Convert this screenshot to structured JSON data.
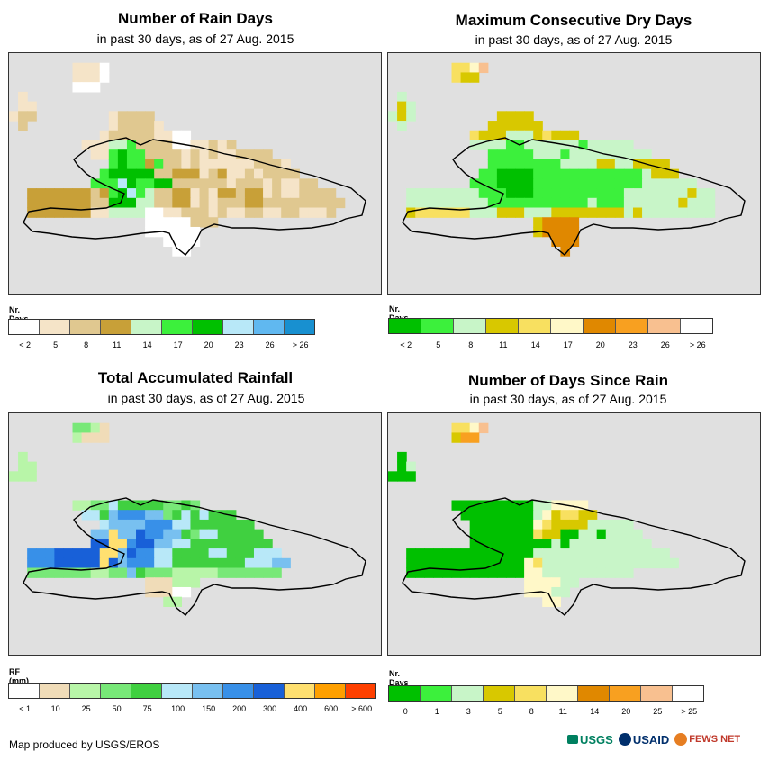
{
  "panels": [
    {
      "id": "rain-days",
      "title": "Number of Rain Days",
      "subtitle": "in past 30 days, as of 27 Aug. 2015",
      "legend_title": "Nr. Days",
      "legend_colors": [
        "#ffffff",
        "#f5e4c8",
        "#e0c890",
        "#c8a038",
        "#c8f5c8",
        "#3cf03c",
        "#00c000",
        "#b8e8f8",
        "#60b8f0",
        "#1890d0"
      ],
      "ticks": [
        "< 2",
        "5",
        "8",
        "11",
        "14",
        "17",
        "20",
        "23",
        "26",
        "> 26"
      ],
      "grid_colors": [
        "#e0e0e0",
        "#ffffff",
        "#f5e4c8",
        "#e0c890",
        "#c8a038",
        "#c8f5c8",
        "#3cf03c",
        "#00c000",
        "#b8e8f8",
        "#60b8f0"
      ],
      "grid": [
        "00000000000000000000000000000000000000000",
        "00000002221000000000000000000000000000000",
        "00000002221000000000000000000000000000000",
        "00000001110000000000000000000000000000000",
        "02000000000000000000000000000000000000000",
        "02200000000000000000000000000000000000000",
        "23300000000233330000000000000000000000000",
        "03000000000233332000000000000000000000000",
        "00000000002333332211000000000000000000000",
        "00000000222556333311223230000000000000000",
        "00000000022676633332323223333000000000000",
        "00000000000676646332322222233320000000000",
        "00000000006777773344423422323333000000000",
        "00000000066687667733333323332322330000000",
        "00444444434678653344232443442322333300000",
        "00444444433777553344232333443333333330000",
        "00444444422555511223332322332233222300000",
        "00000000000000011111333000000000000000000",
        "00000000000000011111100000000000000000000",
        "00000000000000000111100000000000000000000",
        "00000000000000000011000000000000000000000",
        "00000000000000000000000000000000000000000",
        "00000000000000000000000000000000000000000",
        "00000000000000000000000000000000000000000",
        "00000000000000000000000000000000000000000"
      ]
    },
    {
      "id": "dry-days",
      "title": "Maximum Consecutive Dry Days",
      "subtitle": "in past 30 days, as of 27 Aug. 2015",
      "legend_title": "Nr. Days",
      "legend_colors": [
        "#00c000",
        "#3cf03c",
        "#c8f5c8",
        "#d8c800",
        "#f8e060",
        "#fff8c8",
        "#e08800",
        "#f8a020",
        "#f8c090",
        "#ffffff"
      ],
      "ticks": [
        "< 2",
        "5",
        "8",
        "11",
        "14",
        "17",
        "20",
        "23",
        "26",
        "> 26"
      ],
      "grid_colors": [
        "#e0e0e0",
        "#00c000",
        "#3cf03c",
        "#c8f5c8",
        "#d8c800",
        "#f8e060",
        "#fff8c8",
        "#e08800",
        "#f8a020",
        "#f8c090"
      ],
      "grid": [
        "00000000000000000000000000000000000000000",
        "00000005569000000000000000000000000000000",
        "00000005440000000000000000000000000000000",
        "00000000000000000000000000000000000000000",
        "03000000000000000000000000000000000000000",
        "04300000000000000000000000000000000000000",
        "34300000000044440000000000000000000000000",
        "03000000000444444000000000000000000000000",
        "00000000054443334544400000000000000000000",
        "00000000033332233333323333300000000000000",
        "00000000000222223332333333333000000000000",
        "00000000000222222223333443344440000000000",
        "00000000002211112222222222223444000000000",
        "00000000022211112222222222223333330000000",
        "00333333332221112222222222333333343300000",
        "00333333333222222222223222333333433300000",
        "00455555533344433344444444343333333300000",
        "00000000000000004777700000000000000000000",
        "00000000000000004777700000000000000000000",
        "00000000000000000077700000000000000000000",
        "00000000000000000007000000000000000000000",
        "00000000000000000000000000000000000000000",
        "00000000000000000000000000000000000000000",
        "00000000000000000000000000000000000000000",
        "00000000000000000000000000000000000000000"
      ]
    },
    {
      "id": "rainfall",
      "title": "Total Accumulated Rainfall",
      "subtitle": "in past 30 days, as of 27 Aug. 2015",
      "legend_title": "RF (mm)",
      "legend_colors": [
        "#ffffff",
        "#f0dcb8",
        "#b8f5a8",
        "#78e878",
        "#40d040",
        "#b8e8f8",
        "#78c0f0",
        "#3890e8",
        "#1860d8",
        "#ffe070",
        "#ffa000",
        "#ff4000"
      ],
      "ticks": [
        "< 1",
        "10",
        "25",
        "50",
        "75",
        "100",
        "150",
        "200",
        "300",
        "400",
        "600",
        "> 600"
      ],
      "grid_colors": [
        "#e0e0e0",
        "#ffffff",
        "#f0dcb8",
        "#b8f5a8",
        "#78e878",
        "#40d040",
        "#b8e8f8",
        "#78c0f0",
        "#3890e8",
        "#1860d8",
        "#ffe070"
      ],
      "grid": [
        "00000000000000000000000000000000000000000",
        "00000004432000000000000000000000000000000",
        "00000003222000000000000000000000000000000",
        "00000000000000000000000000000000000000000",
        "03000000000000000000000000000000000000000",
        "03300000000000000000000000000000000000000",
        "33300000000000000000000000000000000000000",
        "00000000000000000000000000000000000000000",
        "00000000000000000000000000000000000000000",
        "00000003344655555445400000000000000000000",
        "00000000665788877456565550000000000000000",
        "00000000006777788866555555500000000000000",
        "00000000077a7798877546655555000000000000000",
        "00000000099aa89977665555555550000000000000",
        "0088899999aa798866555566555666000000000000",
        "0088899999a9788866555555556667700000000000",
        "00444444433447544433333444444400000000000000",
        "00000000000000022233300000000000000000000",
        "00000000000000022211000000000000000000000",
        "00000000000000000330000000000000000000000",
        "00000000000000000000000000000000000000000",
        "00000000000000000000000000000000000000000",
        "00000000000000000000000000000000000000000",
        "00000000000000000000000000000000000000000",
        "00000000000000000000000000000000000000000"
      ]
    },
    {
      "id": "since-rain",
      "title": "Number of Days Since Rain",
      "subtitle": "in past 30 days, as of 27 Aug. 2015",
      "legend_title": "Nr. Days",
      "legend_colors": [
        "#00c000",
        "#3cf03c",
        "#c8f5c8",
        "#d8c800",
        "#f8e060",
        "#fff8c8",
        "#e08800",
        "#f8a020",
        "#f8c090",
        "#ffffff"
      ],
      "ticks": [
        "0",
        "1",
        "3",
        "5",
        "8",
        "11",
        "14",
        "20",
        "25",
        "> 25"
      ],
      "grid_colors": [
        "#e0e0e0",
        "#00c000",
        "#3cf03c",
        "#c8f5c8",
        "#d8c800",
        "#f8e060",
        "#fff8c8",
        "#e08800",
        "#f8a020",
        "#f8c090"
      ],
      "grid": [
        "00000000000000000000000000000000000000000",
        "00000005569000000000000000000000000000000",
        "00000004880000000000000000000000000000000",
        "00000000000000000000000000000000000000000",
        "01000000000000000000000000000000000000000",
        "01300000000000000000000000000000000000000",
        "11100000000000000000000000000000000000000",
        "00000000000000000000000000000000000000000",
        "00000000000000000000000000000000000000000",
        "00000001111111113366660000000000000000000",
        "00000000111111113645544000000000000000000",
        "00000000011111116544443333300000000000000",
        "00000000011111115441133133330000000000000",
        "00000000011111111131333333333000000000000",
        "00111111111111113333333333333330000000000",
        "00111111111111165333333333333333000000000",
        "00111111111111166333333333300000000000000",
        "00000000000000066663300000000000000000000",
        "00000000000000066633000000000000000000000",
        "00000000000000000660000000000000000000000",
        "00000000000000000000000000000000000000000",
        "00000000000000000000000000000000000000000",
        "00000000000000000000000000000000000000000",
        "00000000000000000000000000000000000000000",
        "00000000000000000000000000000000000000000"
      ]
    }
  ],
  "footer": {
    "credit": "Map produced by USGS/EROS",
    "logos": [
      "USGS",
      "USAID",
      "FEWS NET"
    ],
    "logo_colors": [
      "#008060",
      "#002f6c",
      "#c0392b"
    ]
  }
}
